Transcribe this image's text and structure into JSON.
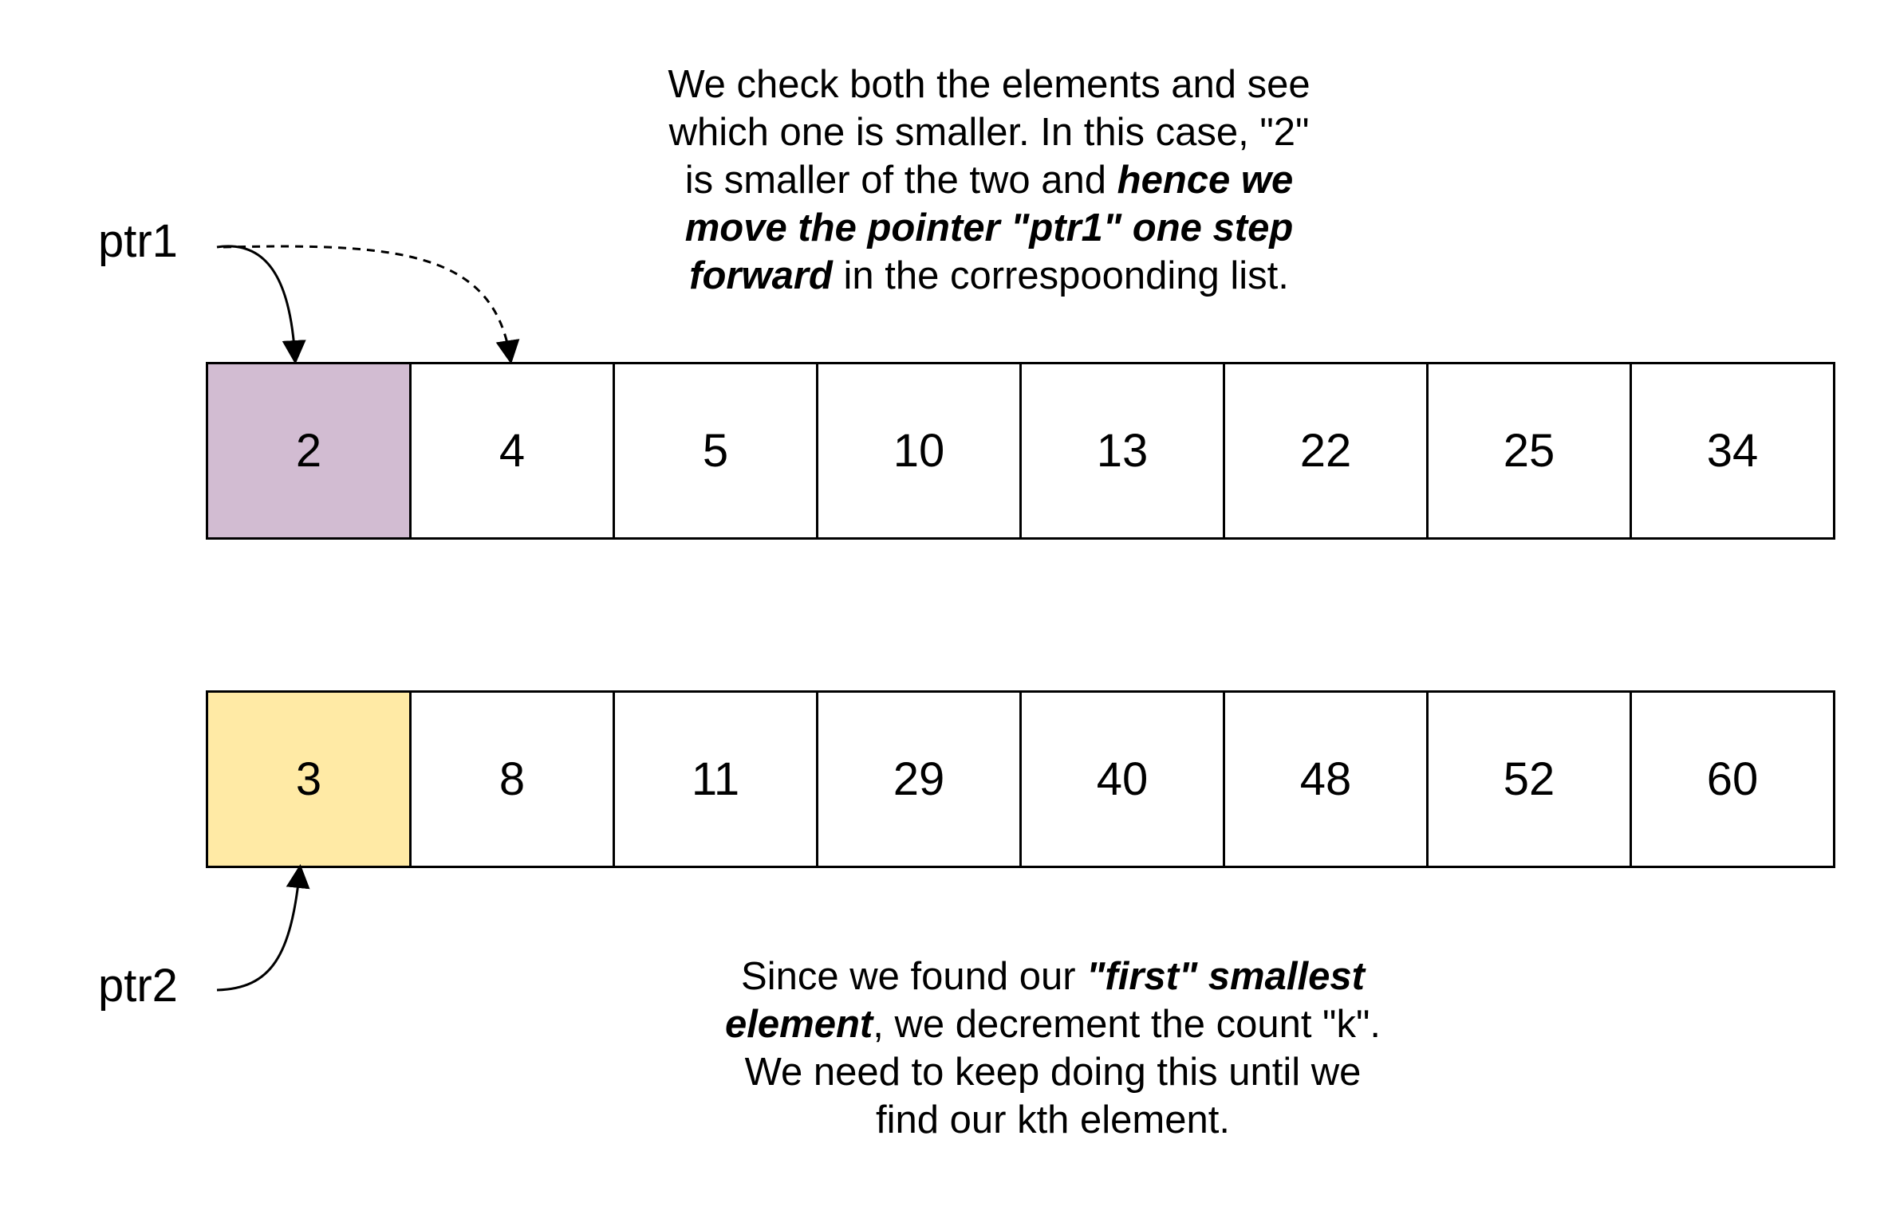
{
  "top_note": {
    "l1": "We check both the elements and see",
    "l2": "which one is smaller. In this case, \"2\"",
    "l3a": "is smaller of the two and ",
    "l3b": "hence we",
    "l4": "move the pointer \"ptr1\" one step",
    "l5a": "forward",
    "l5b": " in the correspoonding list."
  },
  "bottom_note": {
    "l1a": "Since we found our ",
    "l1b": "\"first\" smallest",
    "l2a": "element",
    "l2b": ", we decrement the count \"k\".",
    "l3": "We need to keep doing this until we",
    "l4": "find our kth element."
  },
  "pointers": {
    "ptr1": "ptr1",
    "ptr2": "ptr2"
  },
  "list1": {
    "values": [
      "2",
      "4",
      "5",
      "10",
      "13",
      "22",
      "25",
      "34"
    ],
    "highlight_index": 0,
    "highlight_color": "#d2bcd2"
  },
  "list2": {
    "values": [
      "3",
      "8",
      "11",
      "29",
      "40",
      "48",
      "52",
      "60"
    ],
    "highlight_index": 0,
    "highlight_color": "#ffeaa5"
  }
}
